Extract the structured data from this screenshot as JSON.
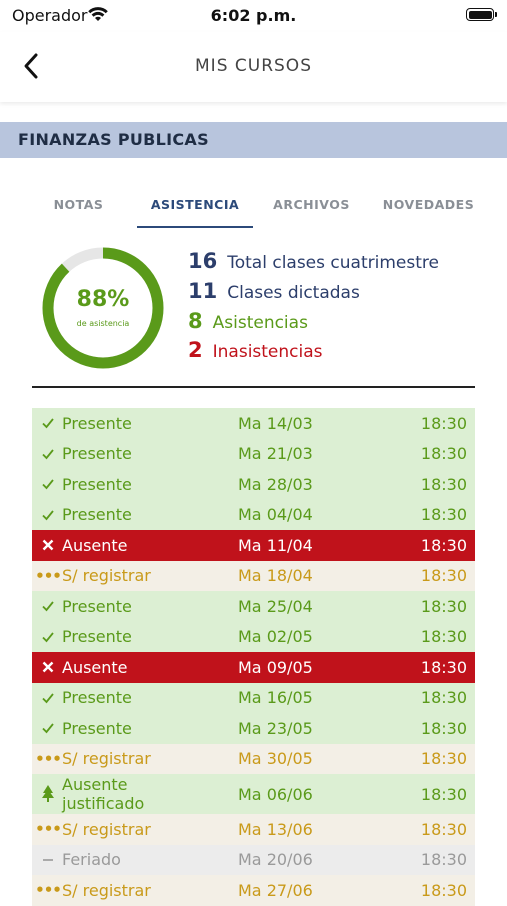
{
  "status_bar": {
    "carrier": "Operador",
    "time": "6:02 p.m."
  },
  "nav": {
    "title": "MIS CURSOS"
  },
  "course": {
    "name": "FINANZAS PUBLICAS"
  },
  "tabs": [
    {
      "label": "NOTAS"
    },
    {
      "label": "ASISTENCIA"
    },
    {
      "label": "ARCHIVOS"
    },
    {
      "label": "NOVEDADES"
    }
  ],
  "active_tab": "ASISTENCIA",
  "summary": {
    "percent": "88%",
    "percent_value": 0.88,
    "percent_label": "de asistencia",
    "stats": [
      {
        "num": "16",
        "text": "Total clases cuatrimestre"
      },
      {
        "num": "11",
        "text": "Clases dictadas"
      },
      {
        "num": "8",
        "text": "Asistencias"
      },
      {
        "num": "2",
        "text": "Inasistencias"
      }
    ]
  },
  "attendance": [
    {
      "status": "Presente",
      "date": "Ma 14/03",
      "time": "18:30",
      "kind": "present"
    },
    {
      "status": "Presente",
      "date": "Ma 21/03",
      "time": "18:30",
      "kind": "present"
    },
    {
      "status": "Presente",
      "date": "Ma 28/03",
      "time": "18:30",
      "kind": "present"
    },
    {
      "status": "Presente",
      "date": "Ma 04/04",
      "time": "18:30",
      "kind": "present"
    },
    {
      "status": "Ausente",
      "date": "Ma 11/04",
      "time": "18:30",
      "kind": "absent"
    },
    {
      "status": "S/ registrar",
      "date": "Ma 18/04",
      "time": "18:30",
      "kind": "pending"
    },
    {
      "status": "Presente",
      "date": "Ma 25/04",
      "time": "18:30",
      "kind": "present"
    },
    {
      "status": "Presente",
      "date": "Ma 02/05",
      "time": "18:30",
      "kind": "present"
    },
    {
      "status": "Ausente",
      "date": "Ma 09/05",
      "time": "18:30",
      "kind": "absent"
    },
    {
      "status": "Presente",
      "date": "Ma 16/05",
      "time": "18:30",
      "kind": "present"
    },
    {
      "status": "Presente",
      "date": "Ma 23/05",
      "time": "18:30",
      "kind": "present"
    },
    {
      "status": "S/ registrar",
      "date": "Ma 30/05",
      "time": "18:30",
      "kind": "pending"
    },
    {
      "status": "Ausente justificado",
      "status_line1": "Ausente",
      "status_line2": "justificado",
      "date": "Ma 06/06",
      "time": "18:30",
      "kind": "justified"
    },
    {
      "status": "S/ registrar",
      "date": "Ma 13/06",
      "time": "18:30",
      "kind": "pending"
    },
    {
      "status": "Feriado",
      "date": "Ma 20/06",
      "time": "18:30",
      "kind": "holiday"
    },
    {
      "status": "S/ registrar",
      "date": "Ma 27/06",
      "time": "18:30",
      "kind": "pending"
    }
  ],
  "colors": {
    "present_bg": "#dcefd3",
    "present_fg": "#5a9a1a",
    "absent_bg": "#c0121b",
    "absent_fg": "#ffffff",
    "pending_bg": "#f3efe6",
    "pending_fg": "#c99a1a",
    "holiday_bg": "#ececec",
    "holiday_fg": "#9a9a9a",
    "donut": "#5a9a1a",
    "accent": "#2c4a7a"
  },
  "icons": {
    "present": "check-icon",
    "absent": "x-icon",
    "pending": "dots-icon",
    "justified": "tree-icon",
    "holiday": "dash-icon"
  }
}
